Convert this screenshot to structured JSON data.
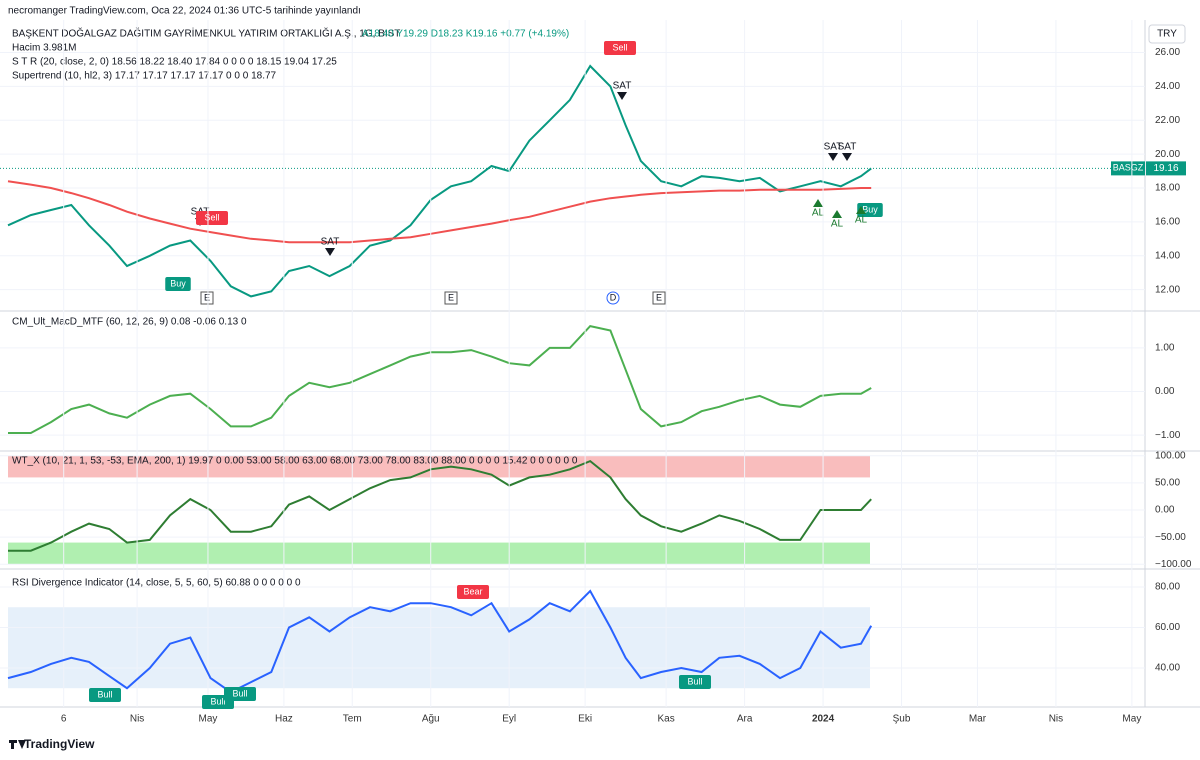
{
  "header": {
    "published": "necromanger TradingView.com, Oca 22, 2024 01:36 UTC-5 tarihinde yayınlandı",
    "symbol": "BAŞKENT DOĞALGAZ DAĞITIM GAYRİMENKUL YATIRIM ORTAKLIĞI A.Ş., 1G, BIST",
    "ohlc": "A18.40 Y19.29 D18.23 K19.16 +0.77 (+4.19%)",
    "currency": "TRY",
    "ticker": "BASGZ",
    "brand": "TradingView"
  },
  "chart_data": [
    {
      "type": "line",
      "legend": [
        "Hacim 3.981M",
        "S T R (20, close, 2, 0)  18.56  18.22  18.40  17.84  0  0  0  0  18.15  19.04  17.25",
        "Supertrend (10, hl2, 3)  17.17  17.17  17.17  17.17  0  0  0  18.77"
      ],
      "x": [
        0,
        9,
        17,
        25,
        32,
        40,
        47,
        56,
        64,
        72,
        80,
        88,
        96,
        104,
        111,
        119,
        127,
        135,
        143,
        151,
        159,
        167,
        175,
        183,
        191,
        198,
        206,
        214,
        222,
        230,
        238,
        244,
        250,
        258,
        266,
        274,
        281,
        289,
        297,
        305,
        313,
        321,
        329,
        337,
        341
      ],
      "xlim": [
        0,
        448
      ],
      "ylim": [
        10.8,
        27.8
      ],
      "yticks": [
        {
          "value": 12,
          "label": "12.00"
        },
        {
          "value": 14,
          "label": "14.00"
        },
        {
          "value": 16,
          "label": "16.00"
        },
        {
          "value": 18,
          "label": "18.00"
        },
        {
          "value": 20,
          "label": "20.00"
        },
        {
          "value": 22,
          "label": "22.00"
        },
        {
          "value": 24,
          "label": "24.00"
        },
        {
          "value": 26,
          "label": "26.00"
        }
      ],
      "series": [
        {
          "color": "#089981",
          "values": [
            15.8,
            16.4,
            16.7,
            17.0,
            15.8,
            14.6,
            13.4,
            14.0,
            14.6,
            14.9,
            13.7,
            12.2,
            11.6,
            11.9,
            13.1,
            13.4,
            12.8,
            13.4,
            14.6,
            14.9,
            15.8,
            17.3,
            18.1,
            18.4,
            19.3,
            19.0,
            20.8,
            22.0,
            23.2,
            25.2,
            24.0,
            21.7,
            19.6,
            18.4,
            18.1,
            18.7,
            18.6,
            18.4,
            18.6,
            17.8,
            18.1,
            18.4,
            18.1,
            18.7,
            19.16
          ]
        },
        {
          "color": "#f05050",
          "values": [
            18.4,
            18.2,
            18.0,
            17.7,
            17.4,
            17.0,
            16.6,
            16.2,
            15.9,
            15.6,
            15.4,
            15.2,
            15.0,
            14.9,
            14.8,
            14.8,
            14.8,
            14.8,
            14.9,
            15.0,
            15.1,
            15.3,
            15.5,
            15.7,
            15.9,
            16.1,
            16.3,
            16.6,
            16.9,
            17.2,
            17.4,
            17.5,
            17.6,
            17.7,
            17.75,
            17.8,
            17.85,
            17.85,
            17.9,
            17.9,
            17.9,
            17.9,
            17.95,
            18.0,
            18.0
          ]
        }
      ],
      "annotations": [
        "Sell",
        "SAT",
        "SAT",
        "Sell",
        "SAT",
        "SAT",
        "SAT",
        "Buy",
        "Buy",
        "AL",
        "AL",
        "AL",
        "E",
        "E",
        "E",
        "D"
      ]
    },
    {
      "type": "line",
      "legend": [
        "CM_Ult_MacD_MTF (60, 12, 26, 9)  0.08  -0.06  0.13  0"
      ],
      "x": [
        0,
        9,
        17,
        25,
        32,
        40,
        47,
        56,
        64,
        72,
        80,
        88,
        96,
        104,
        111,
        119,
        127,
        135,
        143,
        151,
        159,
        167,
        175,
        183,
        191,
        198,
        206,
        214,
        222,
        230,
        238,
        244,
        250,
        258,
        266,
        274,
        281,
        289,
        297,
        305,
        313,
        321,
        329,
        337,
        341
      ],
      "xlim": [
        0,
        448
      ],
      "ylim": [
        -1.34,
        1.8
      ],
      "yticks": [
        {
          "value": 1,
          "label": "1.00"
        },
        {
          "value": 0,
          "label": "0.00"
        },
        {
          "value": -1,
          "label": "−1.00"
        }
      ],
      "series": [
        {
          "color": "#4caf50",
          "values": [
            -0.95,
            -0.95,
            -0.7,
            -0.4,
            -0.3,
            -0.5,
            -0.6,
            -0.3,
            -0.1,
            -0.05,
            -0.4,
            -0.8,
            -0.8,
            -0.6,
            -0.1,
            0.2,
            0.1,
            0.2,
            0.4,
            0.6,
            0.8,
            0.9,
            0.9,
            0.95,
            0.8,
            0.65,
            0.6,
            1.0,
            1.0,
            1.5,
            1.4,
            0.5,
            -0.4,
            -0.8,
            -0.7,
            -0.45,
            -0.35,
            -0.2,
            -0.1,
            -0.3,
            -0.35,
            -0.1,
            -0.05,
            -0.05,
            0.08
          ]
        }
      ]
    },
    {
      "type": "line",
      "legend": [
        "WT_X (10, 21, 1, 53, -53, EMA, 200, 1)  19.97  0  0.00  53.00  58.00  63.00  68.00  73.00  78.00  83.00  88.00  0  0  0  0  15.42  0  0  0  0  0  0"
      ],
      "x": [
        0,
        9,
        17,
        25,
        32,
        40,
        47,
        56,
        64,
        72,
        80,
        88,
        96,
        104,
        111,
        119,
        127,
        135,
        143,
        151,
        159,
        167,
        175,
        183,
        191,
        198,
        206,
        214,
        222,
        230,
        238,
        244,
        250,
        258,
        266,
        274,
        281,
        289,
        297,
        305,
        313,
        321,
        329,
        337,
        341
      ],
      "xlim": [
        0,
        448
      ],
      "ylim": [
        -105,
        105
      ],
      "yticks": [
        {
          "value": 100,
          "label": "100.00"
        },
        {
          "value": 50,
          "label": "50.00"
        },
        {
          "value": 0,
          "label": "0.00"
        },
        {
          "value": -50,
          "label": "−50.00"
        },
        {
          "value": -100,
          "label": "−100.00"
        }
      ],
      "bands": [
        {
          "from": 60,
          "to": 100,
          "color": "#f7a1a1"
        },
        {
          "from": -60,
          "to": -100,
          "color": "#8ee88e"
        }
      ],
      "series": [
        {
          "color": "#2e7d32",
          "values": [
            -75,
            -75,
            -60,
            -40,
            -25,
            -35,
            -60,
            -55,
            -10,
            20,
            0,
            -40,
            -40,
            -30,
            10,
            25,
            0,
            20,
            40,
            55,
            60,
            75,
            80,
            75,
            65,
            45,
            60,
            65,
            75,
            90,
            60,
            20,
            -10,
            -30,
            -40,
            -25,
            -10,
            -20,
            -35,
            -55,
            -55,
            0,
            0,
            0,
            19.97
          ]
        }
      ]
    },
    {
      "type": "line",
      "legend": [
        "RSI Divergence Indicator (14, close, 5, 5, 60, 5)  60.88   0   0 0 0 0 0"
      ],
      "x": [
        0,
        9,
        17,
        25,
        32,
        40,
        47,
        56,
        64,
        72,
        80,
        88,
        96,
        104,
        111,
        119,
        127,
        135,
        143,
        151,
        159,
        167,
        175,
        183,
        191,
        198,
        206,
        214,
        222,
        230,
        238,
        244,
        250,
        258,
        266,
        274,
        281,
        289,
        297,
        305,
        313,
        321,
        329,
        337,
        341
      ],
      "xlim": [
        0,
        448
      ],
      "ylim": [
        21.7,
        87.4
      ],
      "yticks": [
        {
          "value": 80,
          "label": "80.00"
        },
        {
          "value": 60,
          "label": "60.00"
        },
        {
          "value": 40,
          "label": "40.00"
        }
      ],
      "bands": [
        {
          "from": 30,
          "to": 70,
          "color": "#dbe9f8"
        }
      ],
      "xticks": [
        {
          "value": 22,
          "label": "6"
        },
        {
          "value": 51,
          "label": "Nis"
        },
        {
          "value": 79,
          "label": "May"
        },
        {
          "value": 109,
          "label": "Haz"
        },
        {
          "value": 136,
          "label": "Tem"
        },
        {
          "value": 167,
          "label": "Ağu"
        },
        {
          "value": 198,
          "label": "Eyl"
        },
        {
          "value": 228,
          "label": "Eki"
        },
        {
          "value": 260,
          "label": "Kas"
        },
        {
          "value": 291,
          "label": "Ara"
        },
        {
          "value": 322,
          "label": "2024"
        },
        {
          "value": 353,
          "label": "Şub"
        },
        {
          "value": 383,
          "label": "Mar"
        },
        {
          "value": 414,
          "label": "Nis"
        },
        {
          "value": 444,
          "label": "May"
        }
      ],
      "series": [
        {
          "color": "#2962ff",
          "values": [
            35,
            38,
            42,
            45,
            43,
            36,
            30,
            40,
            52,
            55,
            35,
            28,
            33,
            38,
            60,
            65,
            58,
            65,
            70,
            68,
            72,
            72,
            70,
            66,
            72,
            58,
            64,
            72,
            68,
            78,
            60,
            45,
            35,
            38,
            40,
            38,
            45,
            46,
            42,
            35,
            40,
            58,
            50,
            52,
            60.88
          ]
        }
      ],
      "annotations": [
        "Bull",
        "Bull",
        "Bull",
        "Bull",
        "Bear"
      ]
    }
  ]
}
